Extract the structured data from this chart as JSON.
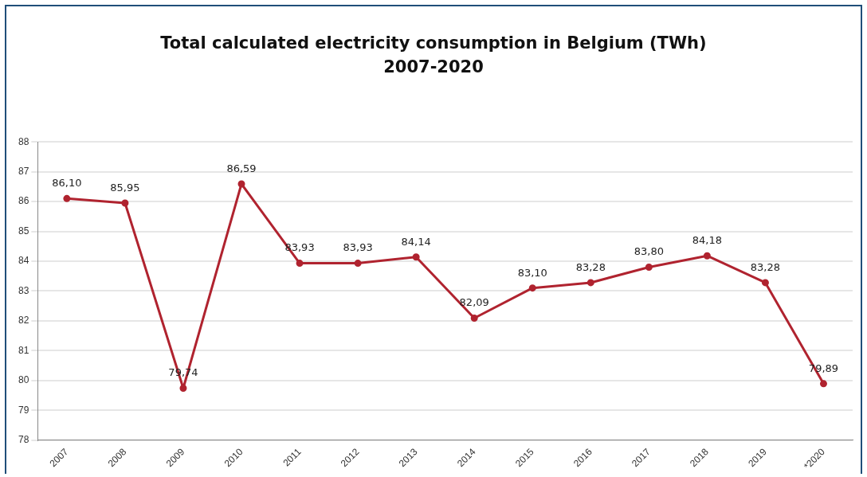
{
  "chart_data": {
    "type": "line",
    "title": "Total calculated electricity consumption in Belgium (TWh)",
    "subtitle": "2007-2020",
    "categories": [
      "2007",
      "2008",
      "2009",
      "2010",
      "2011",
      "2012",
      "2013",
      "2014",
      "2015",
      "2016",
      "2017",
      "2018",
      "2019",
      "*2020"
    ],
    "series": [
      {
        "color": "#b0232f",
        "values": [
          86.1,
          85.95,
          79.74,
          86.59,
          83.93,
          83.93,
          84.14,
          82.09,
          83.1,
          83.28,
          83.8,
          84.18,
          83.28,
          79.89
        ],
        "value_labels": [
          "86,10",
          "85,95",
          "79,74",
          "86,59",
          "83,93",
          "83,93",
          "84,14",
          "82,09",
          "83,10",
          "83,28",
          "83,80",
          "84,18",
          "83,28",
          "79,89"
        ]
      }
    ],
    "ylim": [
      78,
      88
    ],
    "yticks": [
      78,
      79,
      80,
      81,
      82,
      83,
      84,
      85,
      86,
      87,
      88
    ],
    "grid": "y",
    "legend": false,
    "marker": "circle",
    "line_style": "solid"
  }
}
